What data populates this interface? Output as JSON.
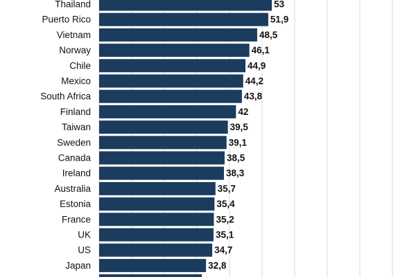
{
  "chart_data": {
    "type": "bar",
    "orientation": "horizontal",
    "categories": [
      "Thailand",
      "Puerto Rico",
      "Vietnam",
      "Norway",
      "Chile",
      "Mexico",
      "South Africa",
      "Finland",
      "Taiwan",
      "Sweden",
      "Canada",
      "Ireland",
      "Australia",
      "Estonia",
      "France",
      "UK",
      "US",
      "Japan",
      ""
    ],
    "value_labels": [
      "53",
      "51,9",
      "48,5",
      "46,1",
      "44,9",
      "44,2",
      "43,8",
      "42",
      "39,5",
      "39,1",
      "38,5",
      "38,3",
      "35,7",
      "35,4",
      "35,2",
      "35,1",
      "34,7",
      "32,8",
      ""
    ],
    "values": [
      53,
      51.9,
      48.5,
      46.1,
      44.9,
      44.2,
      43.8,
      42,
      39.5,
      39.1,
      38.5,
      38.3,
      35.7,
      35.4,
      35.2,
      35.1,
      34.7,
      32.8,
      31.5
    ],
    "xlim": [
      0,
      100
    ],
    "grid": true,
    "colors": {
      "bar": "#1b3c5e",
      "grid": "#d9d9d9"
    }
  }
}
